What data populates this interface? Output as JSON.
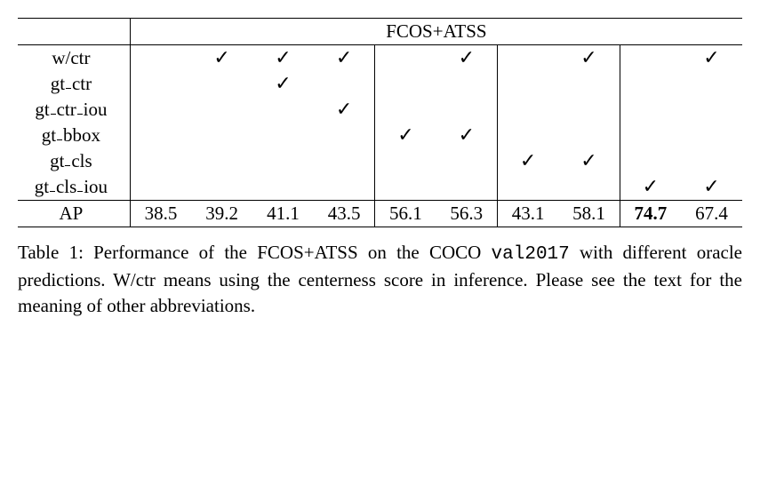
{
  "table": {
    "header_span_label": "FCOS+ATSS",
    "row_labels": [
      "w/ctr",
      "gt_ctr",
      "gt_ctr_iou",
      "gt_bbox",
      "gt_cls",
      "gt_cls_iou"
    ],
    "ap_label": "AP",
    "columns": 10,
    "group_starts": [
      0,
      4,
      6,
      8
    ],
    "checks": {
      "wctr": [
        false,
        true,
        true,
        true,
        false,
        true,
        false,
        true,
        false,
        true
      ],
      "gt_ctr": [
        false,
        false,
        true,
        false,
        false,
        false,
        false,
        false,
        false,
        false
      ],
      "gt_ctr_iou": [
        false,
        false,
        false,
        true,
        false,
        false,
        false,
        false,
        false,
        false
      ],
      "gt_bbox": [
        false,
        false,
        false,
        false,
        true,
        true,
        false,
        false,
        false,
        false
      ],
      "gt_cls": [
        false,
        false,
        false,
        false,
        false,
        false,
        true,
        true,
        false,
        false
      ],
      "gt_cls_iou": [
        false,
        false,
        false,
        false,
        false,
        false,
        false,
        false,
        true,
        true
      ]
    },
    "check_glyph": "✓",
    "ap_values": [
      "38.5",
      "39.2",
      "41.1",
      "43.5",
      "56.1",
      "56.3",
      "43.1",
      "58.1",
      "74.7",
      "67.4"
    ],
    "ap_bold_index": 8
  },
  "caption": {
    "prefix": "Table 1:  Performance of the FCOS+ATSS on the COCO ",
    "mono": "val2017",
    "suffix": " with different oracle predictions. W/ctr means using the centerness score in inference. Please see the text for the meaning of other abbreviations."
  },
  "style": {
    "font_family": "Times New Roman",
    "font_size_pt": 16,
    "text_color": "#000000",
    "background_color": "#ffffff",
    "check_color": "#000000"
  }
}
